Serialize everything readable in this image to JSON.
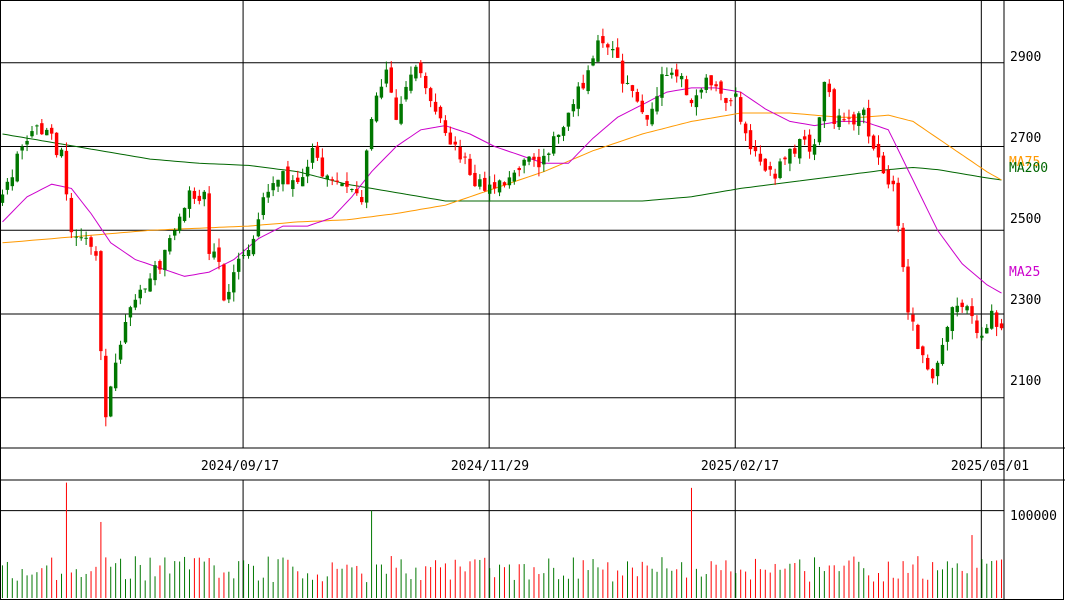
{
  "chart_data": {
    "type": "candlestick",
    "title": "",
    "price_axis": {
      "ylim": [
        1980,
        3050
      ],
      "gridlines": [
        2900,
        2700,
        2500,
        2300,
        2100
      ],
      "tick_labels": [
        "2900",
        "2700",
        "2500",
        "2300",
        "2100"
      ]
    },
    "date_labels": [
      "2024/09/17",
      "2024/11/29",
      "2025/02/17",
      "2025/05/01"
    ],
    "date_label_index": [
      50,
      100,
      150,
      200
    ],
    "volume_axis": {
      "ylim": [
        0,
        135000
      ],
      "gridlines": [
        100000
      ],
      "tick_labels": [
        "100000"
      ]
    },
    "legend": {
      "ma25": "MA25",
      "ma75": "MA75",
      "ma200": "MA200"
    },
    "colors": {
      "up": "#007700",
      "down": "#ff0000",
      "ma25": "#cc00cc",
      "ma75": "#ff9900",
      "ma200": "#006600",
      "grid": "#000000"
    },
    "ohlc_keypoints": [
      [
        0,
        2580
      ],
      [
        3,
        2670
      ],
      [
        6,
        2750
      ],
      [
        9,
        2730
      ],
      [
        12,
        2680
      ],
      [
        14,
        2500
      ],
      [
        17,
        2480
      ],
      [
        19,
        2430
      ],
      [
        20,
        2200
      ],
      [
        21,
        2060
      ],
      [
        23,
        2180
      ],
      [
        25,
        2270
      ],
      [
        28,
        2360
      ],
      [
        32,
        2420
      ],
      [
        35,
        2500
      ],
      [
        38,
        2580
      ],
      [
        41,
        2580
      ],
      [
        42,
        2460
      ],
      [
        44,
        2420
      ],
      [
        45,
        2340
      ],
      [
        48,
        2420
      ],
      [
        50,
        2460
      ],
      [
        53,
        2570
      ],
      [
        56,
        2630
      ],
      [
        60,
        2620
      ],
      [
        63,
        2680
      ],
      [
        66,
        2620
      ],
      [
        70,
        2620
      ],
      [
        73,
        2580
      ],
      [
        74,
        2700
      ],
      [
        76,
        2830
      ],
      [
        78,
        2880
      ],
      [
        80,
        2780
      ],
      [
        82,
        2830
      ],
      [
        84,
        2900
      ],
      [
        86,
        2840
      ],
      [
        88,
        2780
      ],
      [
        90,
        2720
      ],
      [
        93,
        2680
      ],
      [
        96,
        2620
      ],
      [
        99,
        2600
      ],
      [
        103,
        2620
      ],
      [
        106,
        2680
      ],
      [
        109,
        2650
      ],
      [
        113,
        2730
      ],
      [
        116,
        2800
      ],
      [
        119,
        2880
      ],
      [
        121,
        2960
      ],
      [
        124,
        2940
      ],
      [
        126,
        2860
      ],
      [
        128,
        2820
      ],
      [
        131,
        2760
      ],
      [
        134,
        2870
      ],
      [
        137,
        2880
      ],
      [
        140,
        2800
      ],
      [
        143,
        2880
      ],
      [
        146,
        2820
      ],
      [
        149,
        2820
      ],
      [
        151,
        2720
      ],
      [
        154,
        2680
      ],
      [
        156,
        2630
      ],
      [
        159,
        2660
      ],
      [
        162,
        2710
      ],
      [
        165,
        2700
      ],
      [
        167,
        2870
      ],
      [
        169,
        2760
      ],
      [
        172,
        2750
      ],
      [
        175,
        2780
      ],
      [
        177,
        2690
      ],
      [
        179,
        2630
      ],
      [
        181,
        2600
      ],
      [
        182,
        2500
      ],
      [
        184,
        2300
      ],
      [
        187,
        2200
      ],
      [
        189,
        2150
      ],
      [
        191,
        2230
      ],
      [
        193,
        2330
      ],
      [
        196,
        2320
      ],
      [
        199,
        2240
      ],
      [
        201,
        2300
      ],
      [
        203,
        2250
      ]
    ],
    "ma25_points": [
      [
        0,
        2520
      ],
      [
        5,
        2580
      ],
      [
        10,
        2610
      ],
      [
        14,
        2600
      ],
      [
        18,
        2540
      ],
      [
        22,
        2470
      ],
      [
        27,
        2430
      ],
      [
        32,
        2410
      ],
      [
        37,
        2390
      ],
      [
        42,
        2400
      ],
      [
        47,
        2430
      ],
      [
        52,
        2480
      ],
      [
        57,
        2510
      ],
      [
        62,
        2510
      ],
      [
        67,
        2530
      ],
      [
        71,
        2580
      ],
      [
        75,
        2640
      ],
      [
        80,
        2700
      ],
      [
        85,
        2740
      ],
      [
        90,
        2750
      ],
      [
        95,
        2730
      ],
      [
        100,
        2700
      ],
      [
        105,
        2680
      ],
      [
        110,
        2660
      ],
      [
        115,
        2660
      ],
      [
        120,
        2720
      ],
      [
        125,
        2770
      ],
      [
        130,
        2800
      ],
      [
        135,
        2830
      ],
      [
        140,
        2840
      ],
      [
        145,
        2840
      ],
      [
        150,
        2830
      ],
      [
        155,
        2790
      ],
      [
        160,
        2760
      ],
      [
        165,
        2750
      ],
      [
        170,
        2760
      ],
      [
        175,
        2760
      ],
      [
        180,
        2740
      ],
      [
        185,
        2620
      ],
      [
        190,
        2500
      ],
      [
        195,
        2420
      ],
      [
        200,
        2370
      ],
      [
        203,
        2350
      ]
    ],
    "ma75_points": [
      [
        0,
        2470
      ],
      [
        10,
        2480
      ],
      [
        20,
        2490
      ],
      [
        30,
        2500
      ],
      [
        40,
        2505
      ],
      [
        50,
        2510
      ],
      [
        60,
        2520
      ],
      [
        70,
        2525
      ],
      [
        80,
        2540
      ],
      [
        90,
        2560
      ],
      [
        100,
        2600
      ],
      [
        110,
        2640
      ],
      [
        120,
        2690
      ],
      [
        130,
        2730
      ],
      [
        140,
        2760
      ],
      [
        150,
        2780
      ],
      [
        160,
        2780
      ],
      [
        170,
        2770
      ],
      [
        175,
        2770
      ],
      [
        180,
        2775
      ],
      [
        185,
        2760
      ],
      [
        190,
        2720
      ],
      [
        195,
        2680
      ],
      [
        200,
        2640
      ],
      [
        203,
        2620
      ]
    ],
    "ma200_points": [
      [
        0,
        2730
      ],
      [
        10,
        2710
      ],
      [
        20,
        2690
      ],
      [
        30,
        2670
      ],
      [
        40,
        2660
      ],
      [
        50,
        2655
      ],
      [
        60,
        2640
      ],
      [
        70,
        2610
      ],
      [
        80,
        2590
      ],
      [
        90,
        2570
      ],
      [
        100,
        2570
      ],
      [
        110,
        2570
      ],
      [
        120,
        2570
      ],
      [
        130,
        2570
      ],
      [
        140,
        2580
      ],
      [
        150,
        2600
      ],
      [
        160,
        2615
      ],
      [
        170,
        2630
      ],
      [
        180,
        2645
      ],
      [
        185,
        2650
      ],
      [
        190,
        2645
      ],
      [
        195,
        2635
      ],
      [
        200,
        2625
      ],
      [
        203,
        2620
      ]
    ],
    "volume_spikes": [
      [
        13,
        132000
      ],
      [
        20,
        87000
      ],
      [
        75,
        100000
      ],
      [
        140,
        126000
      ],
      [
        197,
        72000
      ]
    ]
  }
}
